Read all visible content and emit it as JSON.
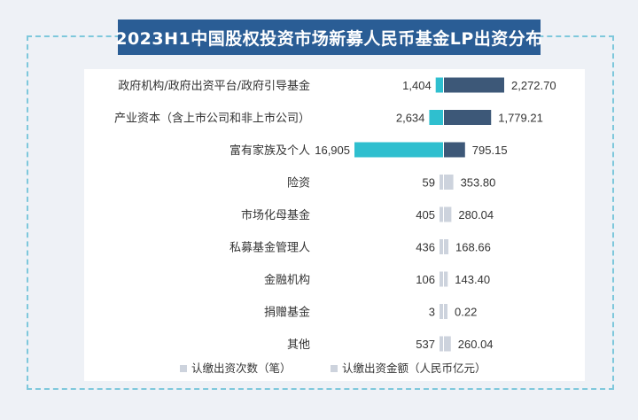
{
  "chart_data": {
    "type": "bar",
    "title": "2023H1中国股权投资市场新募人民币基金LP出资分布",
    "categories": [
      "政府机构/政府出资平台/政府引导基金",
      "产业资本（含上市公司和非上市公司）",
      "富有家族及个人",
      "险资",
      "市场化母基金",
      "私募基金管理人",
      "金融机构",
      "捐赠基金",
      "其他"
    ],
    "series": [
      {
        "name": "认缴出资次数（笔）",
        "values": [
          1404,
          2634,
          16905,
          59,
          405,
          436,
          106,
          3,
          537
        ],
        "labels": [
          "1,404",
          "2,634",
          "16,905",
          "59",
          "405",
          "436",
          "106",
          "3",
          "537"
        ],
        "colors": [
          "#2fbfcf",
          "#2fbfcf",
          "#2fbfcf",
          "#cdd3dd",
          "#cdd3dd",
          "#cdd3dd",
          "#cdd3dd",
          "#cdd3dd",
          "#cdd3dd"
        ]
      },
      {
        "name": "认缴出资金额（人民币亿元）",
        "values": [
          2272.7,
          1779.21,
          795.15,
          353.8,
          280.04,
          168.66,
          143.4,
          0.22,
          260.04
        ],
        "labels": [
          "2,272.70",
          "1,779.21",
          "795.15",
          "353.80",
          "280.04",
          "168.66",
          "143.40",
          "0.22",
          "260.04"
        ],
        "colors": [
          "#3d5878",
          "#3d5878",
          "#3d5878",
          "#cdd3dd",
          "#cdd3dd",
          "#cdd3dd",
          "#cdd3dd",
          "#cdd3dd",
          "#cdd3dd"
        ]
      }
    ],
    "legend": {
      "position": "bottom",
      "items": [
        {
          "label": "认缴出资次数（笔）",
          "color": "#cdd3dd"
        },
        {
          "label": "认缴出资金额（人民币亿元）",
          "color": "#cdd3dd"
        }
      ]
    },
    "colors": {
      "label_text": "#333333",
      "frame_border": "#7ec8dc",
      "title_bg": "#2a5d95"
    },
    "grid": false
  }
}
